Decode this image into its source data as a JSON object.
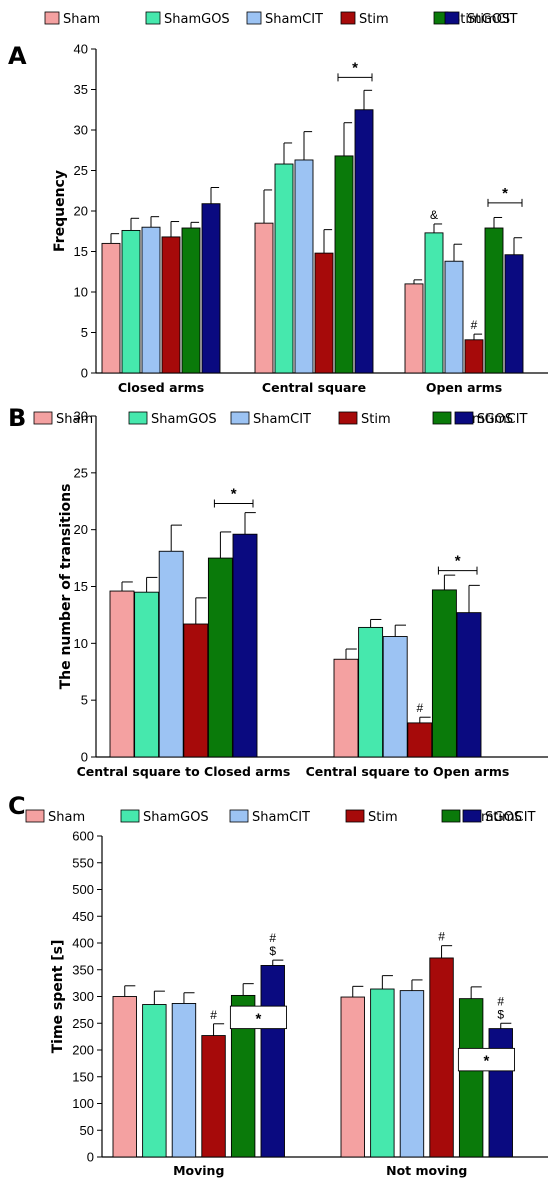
{
  "colors": {
    "Sham": "#f4a1a1",
    "ShamGOS": "#46e8ad",
    "ShamCIT": "#9cc3f3",
    "Stim": "#a60a0a",
    "StimGOS": "#0a7a0a",
    "StimCIT": "#0a0a80"
  },
  "chart_data": [
    {
      "type": "bar",
      "panel": "A",
      "legend": [
        "Sham",
        "ShamGOS",
        "ShamCIT",
        "Stim",
        "StimGOS",
        "StimCIT"
      ],
      "legend_placement": "top",
      "ylabel": "Frequency",
      "xlabel": "",
      "ylim": [
        0,
        40
      ],
      "yticks": [
        0,
        5,
        10,
        15,
        20,
        25,
        30,
        35,
        40
      ],
      "grid": false,
      "categories": [
        "Closed arms",
        "Central square",
        "Open arms"
      ],
      "series": [
        {
          "name": "Sham",
          "values": [
            16,
            18.5,
            11
          ],
          "errors": [
            1.2,
            4.1,
            0.5
          ]
        },
        {
          "name": "ShamGOS",
          "values": [
            17.6,
            25.8,
            17.3
          ],
          "errors": [
            1.5,
            2.6,
            1.1
          ]
        },
        {
          "name": "ShamCIT",
          "values": [
            18,
            26.3,
            13.8
          ],
          "errors": [
            1.3,
            3.5,
            2.1
          ]
        },
        {
          "name": "Stim",
          "values": [
            16.8,
            14.8,
            4.1
          ],
          "errors": [
            1.9,
            2.9,
            0.7
          ]
        },
        {
          "name": "StimGOS",
          "values": [
            17.9,
            26.8,
            17.9
          ],
          "errors": [
            0.7,
            4.1,
            1.3
          ]
        },
        {
          "name": "StimCIT",
          "values": [
            20.9,
            32.5,
            14.6
          ],
          "errors": [
            2.0,
            2.4,
            2.1
          ]
        }
      ],
      "annotations": [
        {
          "category": 2,
          "series": 1,
          "text": "&"
        },
        {
          "category": 2,
          "series": 3,
          "text": "#"
        }
      ],
      "brackets": [
        {
          "category": 1,
          "from_series": 4,
          "to_series": 5,
          "y": 36.5,
          "text": "*"
        },
        {
          "category": 2,
          "from_series": 4,
          "to_series": 5,
          "y": 21,
          "text": "*"
        }
      ]
    },
    {
      "type": "bar",
      "panel": "B",
      "legend": [
        "Sham",
        "ShamGOS",
        "ShamCIT",
        "Stim",
        "StimGOS",
        "StimCIT"
      ],
      "legend_placement": "top",
      "ylabel": "The number of transitions",
      "xlabel": "",
      "ylim": [
        0,
        30
      ],
      "yticks": [
        0,
        5,
        10,
        15,
        20,
        25,
        30
      ],
      "grid": false,
      "categories": [
        "Central square to Closed arms",
        "Central square to Open arms"
      ],
      "series": [
        {
          "name": "Sham",
          "values": [
            14.6,
            8.6
          ],
          "errors": [
            0.8,
            0.9
          ]
        },
        {
          "name": "ShamGOS",
          "values": [
            14.5,
            11.4
          ],
          "errors": [
            1.3,
            0.7
          ]
        },
        {
          "name": "ShamCIT",
          "values": [
            18.1,
            10.6
          ],
          "errors": [
            2.3,
            1.0
          ]
        },
        {
          "name": "Stim",
          "values": [
            11.7,
            3.0
          ],
          "errors": [
            2.3,
            0.5
          ]
        },
        {
          "name": "StimGOS",
          "values": [
            17.5,
            14.7
          ],
          "errors": [
            2.3,
            1.3
          ]
        },
        {
          "name": "StimCIT",
          "values": [
            19.6,
            12.7
          ],
          "errors": [
            1.9,
            2.4
          ]
        }
      ],
      "annotations": [
        {
          "category": 1,
          "series": 3,
          "text": "#"
        }
      ],
      "brackets": [
        {
          "category": 0,
          "from_series": 4,
          "to_series": 5,
          "y": 22.3,
          "text": "*"
        },
        {
          "category": 1,
          "from_series": 4,
          "to_series": 5,
          "y": 16.4,
          "text": "*"
        }
      ]
    },
    {
      "type": "bar",
      "panel": "C",
      "legend": [
        "Sham",
        "ShamGOS",
        "ShamCIT",
        "Stim",
        "StimGOS",
        "StimCIT"
      ],
      "legend_placement": "top",
      "ylabel": "Time spent [s]",
      "xlabel": "",
      "ylim": [
        0,
        600
      ],
      "yticks": [
        0,
        50,
        100,
        150,
        200,
        250,
        300,
        350,
        400,
        450,
        500,
        550,
        600
      ],
      "grid": false,
      "categories": [
        "Moving",
        "Not moving"
      ],
      "series": [
        {
          "name": "Sham",
          "values": [
            300,
            299
          ],
          "errors": [
            20,
            20
          ]
        },
        {
          "name": "ShamGOS",
          "values": [
            285,
            314
          ],
          "errors": [
            25,
            25
          ]
        },
        {
          "name": "ShamCIT",
          "values": [
            287,
            311
          ],
          "errors": [
            20,
            20
          ]
        },
        {
          "name": "Stim",
          "values": [
            227,
            372
          ],
          "errors": [
            22,
            23
          ]
        },
        {
          "name": "StimGOS",
          "values": [
            302,
            296
          ],
          "errors": [
            22,
            22
          ]
        },
        {
          "name": "StimCIT",
          "values": [
            358,
            240
          ],
          "errors": [
            10,
            10
          ]
        }
      ],
      "annotations": [
        {
          "category": 0,
          "series": 3,
          "text": "#"
        },
        {
          "category": 0,
          "series": 5,
          "text": "#"
        },
        {
          "category": 0,
          "series": 5,
          "text": "$"
        },
        {
          "category": 1,
          "series": 3,
          "text": "#"
        },
        {
          "category": 1,
          "series": 5,
          "text": "#"
        },
        {
          "category": 1,
          "series": 5,
          "text": "$"
        }
      ],
      "boxes": [
        {
          "category": 0,
          "from_series": 4,
          "to_series": 5,
          "y_top": 282,
          "y_bottom": 240,
          "text": "*"
        },
        {
          "category": 1,
          "from_series": 4,
          "to_series": 5,
          "y_top": 203,
          "y_bottom": 161,
          "text": "*"
        }
      ]
    }
  ]
}
